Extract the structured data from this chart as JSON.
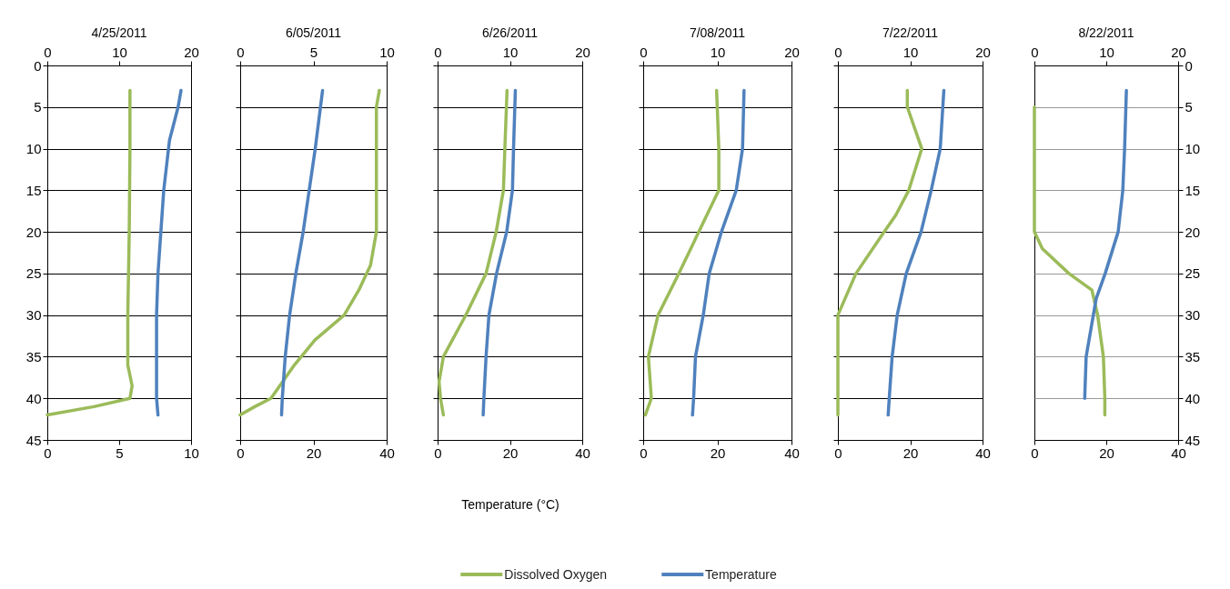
{
  "chart_data": [
    {
      "type": "line",
      "title": "4/25/2011",
      "legend": "bottom",
      "xlim": [
        0,
        10
      ],
      "xticks": [
        0,
        5,
        10
      ],
      "x2lim": [
        0,
        20
      ],
      "x2ticks": [
        0,
        10,
        20
      ],
      "ylim": [
        45,
        0
      ],
      "yticks": [
        0,
        5,
        10,
        15,
        20,
        25,
        30,
        35,
        40,
        45
      ],
      "grid": "y",
      "series": [
        {
          "name": "Dissolved Oxygen",
          "color": "#9bbb59",
          "axis": "x2",
          "x": [
            11.5,
            11.5,
            11.4,
            11.2,
            11.2,
            11.8,
            11.5,
            6.5,
            0
          ],
          "values": [
            3,
            10,
            20,
            30,
            36,
            38.5,
            40,
            41,
            42
          ]
        },
        {
          "name": "Temperature",
          "color": "#4f81bd",
          "x": [
            9.3,
            9.1,
            8.5,
            8.1,
            7.9,
            7.7,
            7.6,
            7.6,
            7.6,
            7.7
          ],
          "values": [
            3,
            5,
            9,
            15,
            20,
            25,
            30,
            35,
            40,
            42
          ]
        }
      ]
    },
    {
      "type": "line",
      "title": "6/05/2011",
      "xlim": [
        0,
        40
      ],
      "xticks": [
        0,
        20,
        40
      ],
      "x2lim": [
        0,
        10
      ],
      "x2ticks": [
        0,
        5,
        10
      ],
      "ylim": [
        45,
        0
      ],
      "yticks": [
        0,
        5,
        10,
        15,
        20,
        25,
        30,
        35,
        40,
        45
      ],
      "grid": "y",
      "tick_labels": "x",
      "series": [
        {
          "color": "#9bbb59",
          "axis": "x2",
          "x": [
            9.5,
            9.3,
            9.3,
            9.3,
            8.9,
            8.1,
            7.1,
            5.1,
            3.7,
            2.9,
            2.1,
            1,
            0
          ],
          "values": [
            3,
            5,
            10,
            20,
            24,
            27,
            30,
            33,
            36,
            38,
            40,
            41,
            42
          ]
        },
        {
          "color": "#4f81bd",
          "x": [
            22.5,
            20.5,
            17.2,
            15.2,
            13.5,
            12.3,
            11.5,
            11.3
          ],
          "values": [
            3,
            10,
            20,
            25,
            30,
            35,
            40,
            42
          ]
        }
      ]
    },
    {
      "type": "line",
      "title": "6/26/2011",
      "xlabel": "Temperature (°C)",
      "xlim": [
        0,
        40
      ],
      "xticks": [
        0,
        20,
        40
      ],
      "x2lim": [
        0,
        20
      ],
      "x2ticks": [
        0,
        10,
        20
      ],
      "ylim": [
        45,
        0
      ],
      "yticks": [
        0,
        5,
        10,
        15,
        20,
        25,
        30,
        35,
        40,
        45
      ],
      "grid": "y",
      "tick_labels": "x",
      "series": [
        {
          "color": "#9bbb59",
          "axis": "x2",
          "x": [
            9.6,
            9.3,
            9.1,
            8.1,
            6.7,
            3.9,
            0.8,
            0.2,
            0.4,
            0.8
          ],
          "values": [
            3,
            10,
            15,
            20,
            25,
            30,
            35,
            38,
            40,
            42
          ]
        },
        {
          "color": "#4f81bd",
          "x": [
            21.5,
            21,
            20.7,
            19.1,
            16.3,
            14.2,
            13.4,
            12.8,
            12.6
          ],
          "values": [
            3,
            10,
            15,
            20,
            25,
            30,
            35,
            40,
            42
          ]
        }
      ]
    },
    {
      "type": "line",
      "title": "7/08/2011",
      "xlim": [
        0,
        40
      ],
      "xticks": [
        0,
        20,
        40
      ],
      "x2lim": [
        0,
        20
      ],
      "x2ticks": [
        0,
        10,
        20
      ],
      "ylim": [
        45,
        0
      ],
      "yticks": [
        0,
        5,
        10,
        15,
        20,
        25,
        30,
        35,
        40,
        45
      ],
      "grid": "y",
      "tick_labels": "x",
      "series": [
        {
          "color": "#9bbb59",
          "axis": "x2",
          "x": [
            9.9,
            10.2,
            10.2,
            7.5,
            4.8,
            2,
            0.7,
            1.1,
            0.3
          ],
          "values": [
            3,
            10,
            15,
            20,
            25,
            30,
            35,
            40,
            42
          ]
        },
        {
          "color": "#4f81bd",
          "x": [
            27.2,
            26.8,
            25.1,
            21.1,
            17.8,
            16.2,
            14.1,
            13.6,
            13.3
          ],
          "values": [
            3,
            10,
            15,
            20,
            25,
            30,
            35,
            40,
            42
          ]
        }
      ]
    },
    {
      "type": "line",
      "title": "7/22/2011",
      "xlim": [
        0,
        40
      ],
      "xticks": [
        0,
        20,
        40
      ],
      "x2lim": [
        0,
        20
      ],
      "x2ticks": [
        0,
        10,
        20
      ],
      "ylim": [
        45,
        0
      ],
      "yticks": [
        0,
        5,
        10,
        15,
        20,
        25,
        30,
        35,
        40,
        45
      ],
      "grid": "y",
      "tick_labels": "x",
      "series": [
        {
          "color": "#9bbb59",
          "axis": "x2",
          "x": [
            9.6,
            9.6,
            11.6,
            9.8,
            8,
            6.4,
            2.5,
            0,
            0,
            0
          ],
          "values": [
            3,
            5,
            10,
            15,
            18,
            20,
            25,
            30,
            35,
            42
          ]
        },
        {
          "color": "#4f81bd",
          "x": [
            29.3,
            28.3,
            25.8,
            23,
            18.9,
            16.4,
            15,
            14.2,
            13.9
          ],
          "values": [
            3,
            10,
            15,
            20,
            25,
            30,
            35,
            40,
            42
          ]
        }
      ]
    },
    {
      "type": "line",
      "title": "8/22/2011",
      "xlim": [
        0,
        40
      ],
      "xticks": [
        0,
        20,
        40
      ],
      "x2lim": [
        0,
        20
      ],
      "x2ticks": [
        0,
        10,
        20
      ],
      "ylim": [
        45,
        0
      ],
      "yticks": [
        0,
        5,
        10,
        15,
        20,
        25,
        30,
        35,
        40,
        45
      ],
      "grid": "y",
      "series": [
        {
          "color": "#9bbb59",
          "axis": "x2",
          "x": [
            0,
            0,
            1.1,
            4.8,
            8,
            8.8,
            9.6,
            9.8,
            9.8
          ],
          "values": [
            5,
            20,
            22,
            25,
            27,
            30,
            35,
            40,
            42
          ]
        },
        {
          "color": "#4f81bd",
          "x": [
            25.6,
            25.1,
            24.6,
            23.3,
            19.7,
            17.2,
            16.4,
            14.4,
            14
          ],
          "values": [
            3,
            10,
            15,
            20,
            25,
            28,
            30,
            35,
            40
          ]
        }
      ]
    }
  ]
}
